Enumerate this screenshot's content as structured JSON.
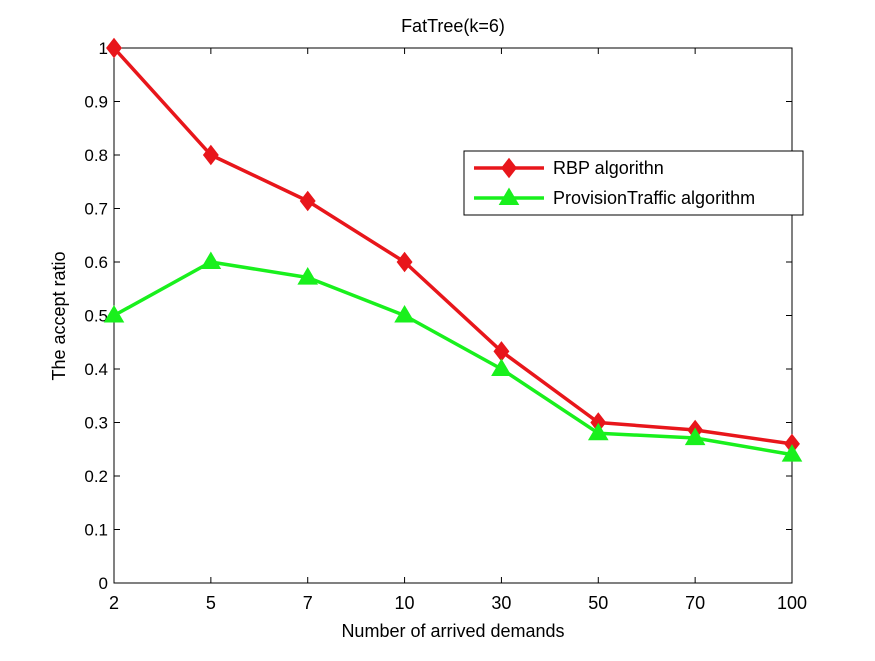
{
  "chart_data": {
    "type": "line",
    "title": "FatTree(k=6)",
    "xlabel": "Number of arrived demands",
    "ylabel": "The accept ratio",
    "categories": [
      "2",
      "5",
      "7",
      "10",
      "30",
      "50",
      "70",
      "100"
    ],
    "ylim": [
      0,
      1
    ],
    "yticks": [
      "0",
      "0.1",
      "0.2",
      "0.3",
      "0.4",
      "0.5",
      "0.6",
      "0.7",
      "0.8",
      "0.9",
      "1"
    ],
    "grid": false,
    "legend_position": "upper-right",
    "series": [
      {
        "name": "RBP algorithn",
        "values": [
          1.0,
          0.8,
          0.714,
          0.6,
          0.433,
          0.3,
          0.286,
          0.26
        ],
        "color": "#e8161b",
        "marker": "diamond"
      },
      {
        "name": "ProvisionTraffic algorithm",
        "values": [
          0.5,
          0.6,
          0.571,
          0.5,
          0.4,
          0.28,
          0.271,
          0.24
        ],
        "color": "#19f01d",
        "marker": "triangle"
      }
    ]
  }
}
